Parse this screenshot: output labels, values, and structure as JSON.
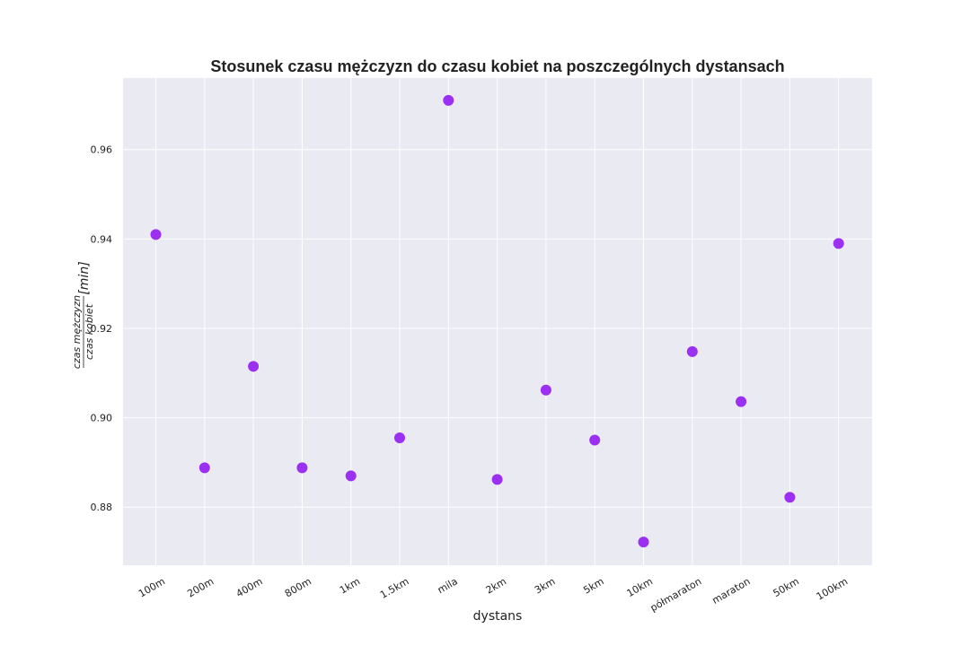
{
  "chart_data": {
    "type": "scatter",
    "title": "Stosunek czasu mężczyzn do czasu kobiet na poszczególnych dystansach",
    "xlabel": "dystans",
    "ylabel": {
      "numerator": "czas mężczyzn",
      "denominator": "czas kobiet",
      "unit": "[min]"
    },
    "categories": [
      "100m",
      "200m",
      "400m",
      "800m",
      "1km",
      "1.5km",
      "mila",
      "2km",
      "3km",
      "5km",
      "10km",
      "półmaraton",
      "maraton",
      "50km",
      "100km"
    ],
    "values": [
      0.941,
      0.8888,
      0.9115,
      0.8888,
      0.887,
      0.8955,
      0.971,
      0.8862,
      0.9062,
      0.895,
      0.8722,
      0.9148,
      0.9036,
      0.8822,
      0.939
    ],
    "ylim": [
      0.867,
      0.976
    ],
    "yticks": [
      "0.88",
      "0.90",
      "0.92",
      "0.94",
      "0.96"
    ],
    "grid": true,
    "colors": {
      "point": "#9b2ff2",
      "background": "#eaeaf2",
      "grid": "#ffffff"
    }
  }
}
